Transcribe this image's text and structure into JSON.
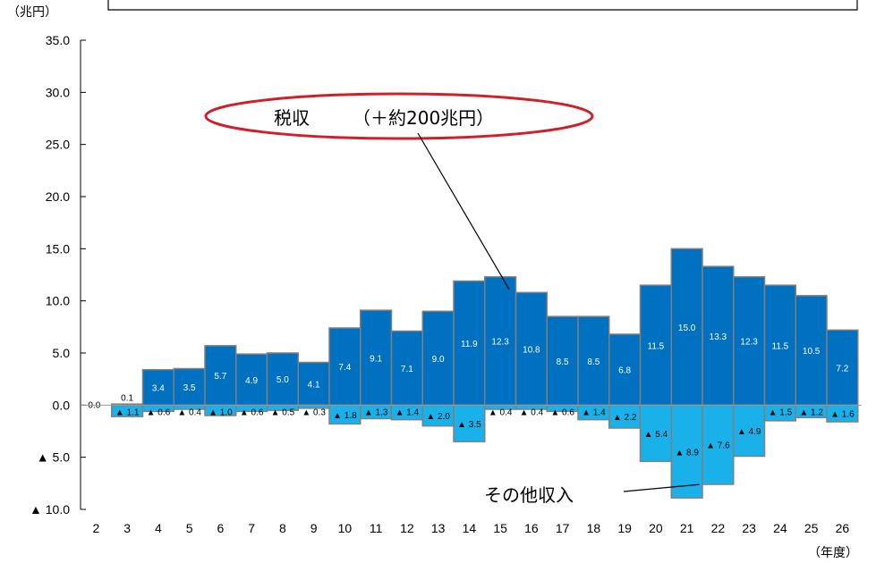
{
  "chart_data": {
    "type": "bar",
    "ylabel": "（兆円）",
    "xlabel": "（年度）",
    "categories": [
      "2",
      "3",
      "4",
      "5",
      "6",
      "7",
      "8",
      "9",
      "10",
      "11",
      "12",
      "13",
      "14",
      "15",
      "16",
      "17",
      "18",
      "19",
      "20",
      "21",
      "22",
      "23",
      "24",
      "25",
      "26"
    ],
    "y_tick_labels": [
      "35.0",
      "30.0",
      "25.0",
      "20.0",
      "15.0",
      "10.0",
      "5.0",
      "0.0",
      "▲ 5.0",
      "▲ 10.0"
    ],
    "ylim": [
      -10,
      35
    ],
    "y_ticks": [
      35,
      30,
      25,
      20,
      15,
      10,
      5,
      0,
      -5,
      -10
    ],
    "grid": false,
    "series": [
      {
        "name": "税収",
        "values": [
          0.0,
          0.1,
          3.4,
          3.5,
          5.7,
          4.9,
          5.0,
          4.1,
          7.4,
          9.1,
          7.1,
          9.0,
          11.9,
          12.3,
          10.8,
          8.5,
          8.5,
          6.8,
          11.5,
          15.0,
          13.3,
          12.3,
          11.5,
          10.5,
          7.2
        ],
        "labels": [
          "0.0",
          "0.1",
          "3.4",
          "3.5",
          "5.7",
          "4.9",
          "5.0",
          "4.1",
          "7.4",
          "9.1",
          "7.1",
          "9.0",
          "11.9",
          "12.3",
          "10.8",
          "8.5",
          "8.5",
          "6.8",
          "11.5",
          "15.0",
          "13.3",
          "12.3",
          "11.5",
          "10.5",
          "7.2"
        ],
        "color": "#0070c0"
      },
      {
        "name": "その他収入",
        "values": [
          0.0,
          -1.1,
          -0.6,
          -0.4,
          -1.0,
          -0.6,
          -0.5,
          -0.3,
          -1.8,
          -1.3,
          -1.4,
          -2.0,
          -3.5,
          -0.4,
          -0.4,
          -0.6,
          -1.4,
          -2.2,
          -5.4,
          -8.9,
          -7.6,
          -4.9,
          -1.5,
          -1.2,
          -1.6
        ],
        "labels": [
          "0.0",
          "▲ 1.1",
          "▲ 0.6",
          "▲ 0.4",
          "▲ 1.0",
          "▲ 0.6",
          "▲ 0.5",
          "▲ 0.3",
          "▲ 1.8",
          "▲ 1.3",
          "▲ 1.4",
          "▲ 2.0",
          "▲ 3.5",
          "▲ 0.4",
          "▲ 0.4",
          "▲ 0.6",
          "▲ 1.4",
          "▲ 2.2",
          "▲ 5.4",
          "▲ 8.9",
          "▲ 7.6",
          "▲ 4.9",
          "▲ 1.5",
          "▲ 1.2",
          "▲ 1.6"
        ],
        "color": "#1ab0ea"
      }
    ],
    "annotations": [
      {
        "text": "税収",
        "subtext": "（＋約200兆円）",
        "target_series": 0,
        "target_category": "15"
      },
      {
        "text": "その他収入",
        "target_series": 1,
        "target_category": "21"
      }
    ]
  }
}
